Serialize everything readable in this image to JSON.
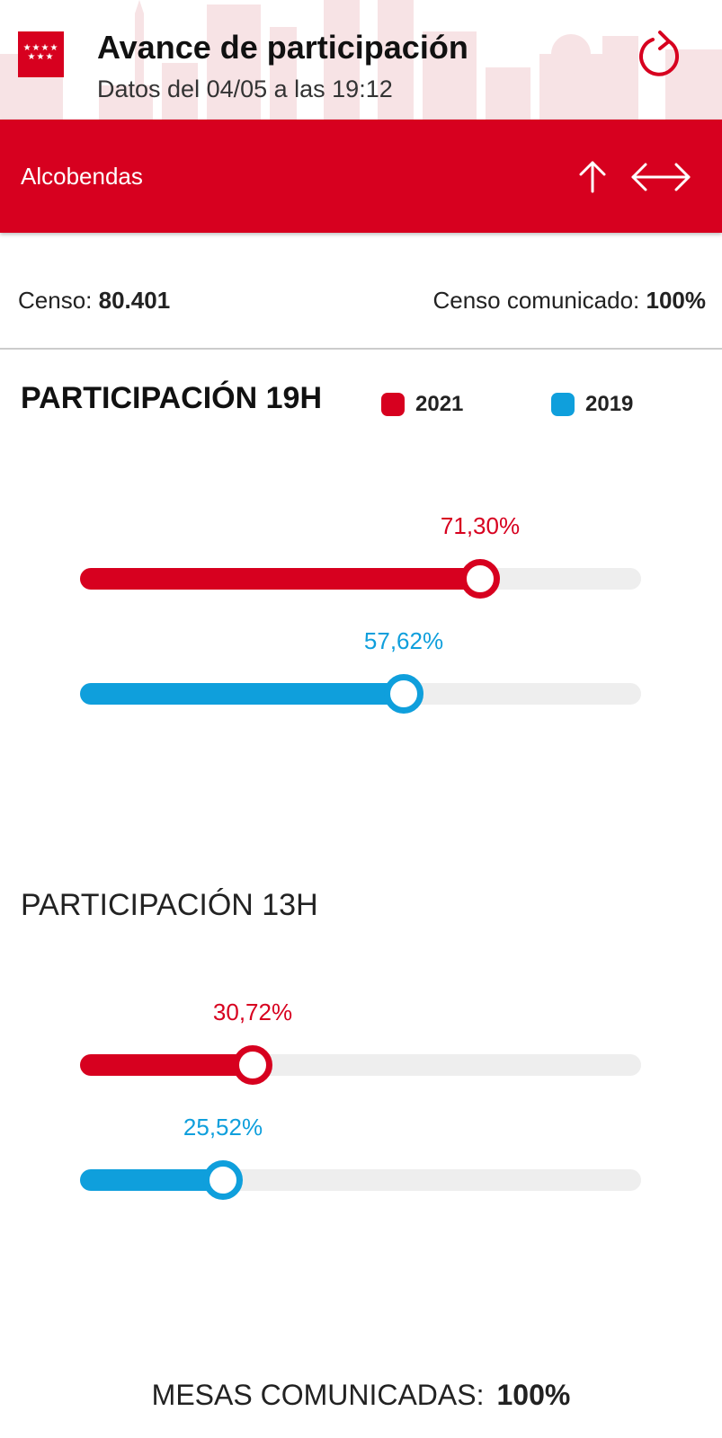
{
  "header": {
    "title": "Avance de participación",
    "subtitle": "Datos del 04/05 a las 19:12",
    "logo_stars": "★★★★ ★★★"
  },
  "location_bar": {
    "municipality": "Alcobendas",
    "icons": [
      "arrow-up-icon",
      "swap-horizontal-icon"
    ]
  },
  "census": {
    "label": "Censo:",
    "value": "80.401",
    "reported_label": "Censo comunicado:",
    "reported_value": "100%"
  },
  "legend": {
    "series_a": "2021",
    "series_b": "2019",
    "color_a": "#d7001f",
    "color_b": "#0f9fdc"
  },
  "sections": [
    {
      "title": "PARTICIPACIÓN 19H",
      "bars": [
        {
          "label": "71,30%",
          "value": 71.3,
          "year": "2021"
        },
        {
          "label": "57,62%",
          "value": 57.62,
          "year": "2019"
        }
      ]
    },
    {
      "title": "PARTICIPACIÓN 13H",
      "bars": [
        {
          "label": "30,72%",
          "value": 30.72,
          "year": "2021"
        },
        {
          "label": "25,52%",
          "value": 25.52,
          "year": "2019"
        }
      ]
    }
  ],
  "footer": {
    "label": "MESAS COMUNICADAS:",
    "value": "100%"
  },
  "colors": {
    "brand_red": "#d7001f",
    "blue": "#0f9fdc",
    "track": "#eeeeee"
  }
}
